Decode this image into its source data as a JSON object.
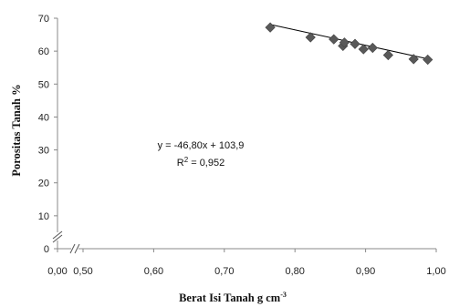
{
  "chart_data": {
    "type": "scatter",
    "title": "",
    "xlabel": "Berat Isi Tanah g cm",
    "xlabel_sup": "-3",
    "ylabel": "Porositas Tanah %",
    "xlim": [
      0,
      1
    ],
    "ylim": [
      0,
      70
    ],
    "x_ticks": [
      "0,00",
      "0,50",
      "0,60",
      "0,70",
      "0,80",
      "0,90",
      "1,00"
    ],
    "y_ticks": [
      "0",
      "10",
      "20",
      "30",
      "40",
      "50",
      "60",
      "70"
    ],
    "axis_break": true,
    "grid": false,
    "legend": "none",
    "marker": "diamond",
    "marker_color": "#595959",
    "x": [
      0.765,
      0.822,
      0.855,
      0.868,
      0.87,
      0.885,
      0.897,
      0.91,
      0.932,
      0.968,
      0.988
    ],
    "y": [
      67.2,
      64.2,
      63.6,
      61.6,
      62.6,
      62.2,
      60.6,
      61.0,
      58.8,
      57.6,
      57.4
    ],
    "trendline": {
      "slope": -46.8,
      "intercept": 103.9,
      "x_range": [
        0.765,
        0.988
      ],
      "color": "#000000"
    },
    "equation": "y = -46,80x + 103,9",
    "r2_prefix": "R",
    "r2_sup": "2",
    "r2_value": " = 0,952"
  }
}
